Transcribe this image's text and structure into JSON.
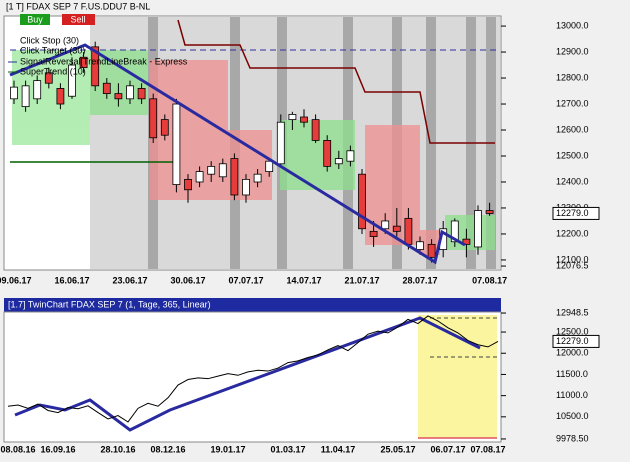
{
  "window": {
    "title": "[1 T] FDAX SEP 7  F.US.DDU7 B-NL",
    "buttons": [
      "Buy",
      "Sell"
    ],
    "legend": [
      "Click Stop  (30)",
      "Click Target  (30)",
      "SignalReversal[TrendLineBreak - Express",
      "SuperTrend  (10)"
    ]
  },
  "chart_data": [
    {
      "type": "candlestick",
      "categories": [
        "09.06.17",
        null,
        null,
        null,
        null,
        "16.06.17",
        null,
        null,
        null,
        null,
        "23.06.17",
        null,
        null,
        null,
        null,
        "30.06.17",
        null,
        null,
        null,
        null,
        "07.07.17",
        null,
        null,
        null,
        null,
        "14.07.17",
        null,
        null,
        null,
        null,
        "21.07.17",
        null,
        null,
        null,
        null,
        "28.07.17",
        null,
        null,
        null,
        null,
        null,
        "07.08.17"
      ],
      "open": [
        12720,
        12690,
        12720,
        12820,
        12760,
        12730,
        12880,
        12920,
        12780,
        12740,
        12720,
        12760,
        12720,
        12640,
        12390,
        12410,
        12400,
        12430,
        12420,
        12490,
        12350,
        12400,
        12440,
        12470,
        12640,
        12650,
        12640,
        12560,
        12470,
        12480,
        12430,
        12210,
        12220,
        12230,
        12260,
        12140,
        12160,
        12140,
        12170,
        12180,
        12150,
        12290
      ],
      "high": [
        12790,
        12790,
        12810,
        12840,
        12780,
        12880,
        12900,
        12940,
        12800,
        12780,
        12790,
        12780,
        12740,
        12660,
        12720,
        12430,
        12460,
        12480,
        12490,
        12510,
        12430,
        12450,
        12490,
        12660,
        12670,
        12680,
        12660,
        12580,
        12520,
        12540,
        12450,
        12250,
        12280,
        12300,
        12300,
        12190,
        12180,
        12250,
        12260,
        12220,
        12310,
        12320
      ],
      "low": [
        12700,
        12670,
        12700,
        12760,
        12680,
        12720,
        12820,
        12750,
        12720,
        12690,
        12700,
        12700,
        12550,
        12560,
        12360,
        12320,
        12380,
        12400,
        12400,
        12330,
        12320,
        12380,
        12420,
        12460,
        12600,
        12610,
        12550,
        12440,
        12450,
        12460,
        12200,
        12150,
        12200,
        12190,
        12140,
        12120,
        12090,
        12110,
        12150,
        12110,
        12120,
        12270
      ],
      "close": [
        12765,
        12770,
        12790,
        12780,
        12700,
        12850,
        12840,
        12770,
        12740,
        12720,
        12770,
        12720,
        12570,
        12580,
        12700,
        12370,
        12440,
        12460,
        12470,
        12350,
        12410,
        12430,
        12480,
        12630,
        12660,
        12630,
        12560,
        12460,
        12490,
        12520,
        12220,
        12190,
        12250,
        12210,
        12160,
        12170,
        12110,
        12220,
        12250,
        12160,
        12290,
        12279
      ],
      "up_color": "#ffffff",
      "down_color": "#e63c3c",
      "ylim": [
        12069,
        13031
      ],
      "yticks": [
        {
          "value": 13000,
          "label": "13000.0"
        },
        {
          "value": 12900,
          "label": "12900.0"
        },
        {
          "value": 12800,
          "label": "12800.0"
        },
        {
          "value": 12700,
          "label": "12700.0"
        },
        {
          "value": 12600,
          "label": "12600.0"
        },
        {
          "value": 12500,
          "label": "12500.0"
        },
        {
          "value": 12400,
          "label": "12400.0"
        },
        {
          "value": 12300,
          "label": "12300.0"
        },
        {
          "value": 12200,
          "label": "12200.0"
        },
        {
          "value": 12100,
          "label": "12100.0"
        },
        12076.5
      ],
      "last": {
        "value": 12279,
        "label": "12279.0"
      }
    },
    {
      "type": "line",
      "title": "[1.7] TwinChart FDAX SEP 7  (1, Tage, 365, Linear)",
      "categories": [
        null,
        "08.08.16",
        null,
        null,
        null,
        "16.09.16",
        null,
        null,
        null,
        null,
        null,
        "28.10.16",
        null,
        null,
        null,
        null,
        "08.12.16",
        null,
        null,
        null,
        null,
        null,
        "19.01.17",
        null,
        null,
        null,
        null,
        null,
        "01.03.17",
        null,
        null,
        null,
        null,
        "11.04.17",
        null,
        null,
        null,
        null,
        null,
        "25.05.17",
        null,
        null,
        null,
        null,
        "06.07.17",
        null,
        null,
        null,
        "07.08.17",
        null
      ],
      "values": [
        10750,
        10780,
        10700,
        10800,
        10650,
        10600,
        10720,
        10690,
        10760,
        10600,
        10450,
        10530,
        10380,
        10700,
        10820,
        10750,
        10950,
        11250,
        11380,
        11420,
        11400,
        11460,
        11520,
        11480,
        11560,
        11600,
        11580,
        11650,
        11780,
        11820,
        11900,
        11960,
        12080,
        12180,
        12060,
        12250,
        12450,
        12520,
        12480,
        12620,
        12800,
        12700,
        12880,
        12760,
        12600,
        12480,
        12300,
        12200,
        12150,
        12279
      ],
      "color": "#000000",
      "ylim": [
        9930,
        13020
      ],
      "yticks": [
        12948.5,
        {
          "value": 12500,
          "label": "12500.0"
        },
        {
          "value": 12000,
          "label": "12000.0"
        },
        {
          "value": 11500,
          "label": "11500.0"
        },
        {
          "value": 11000,
          "label": "11000.0"
        },
        {
          "value": 10500,
          "label": "10500.0"
        },
        {
          "value": 9978.5,
          "label": "9978.50"
        }
      ],
      "last": {
        "value": 12279,
        "label": "12279.0"
      }
    }
  ]
}
